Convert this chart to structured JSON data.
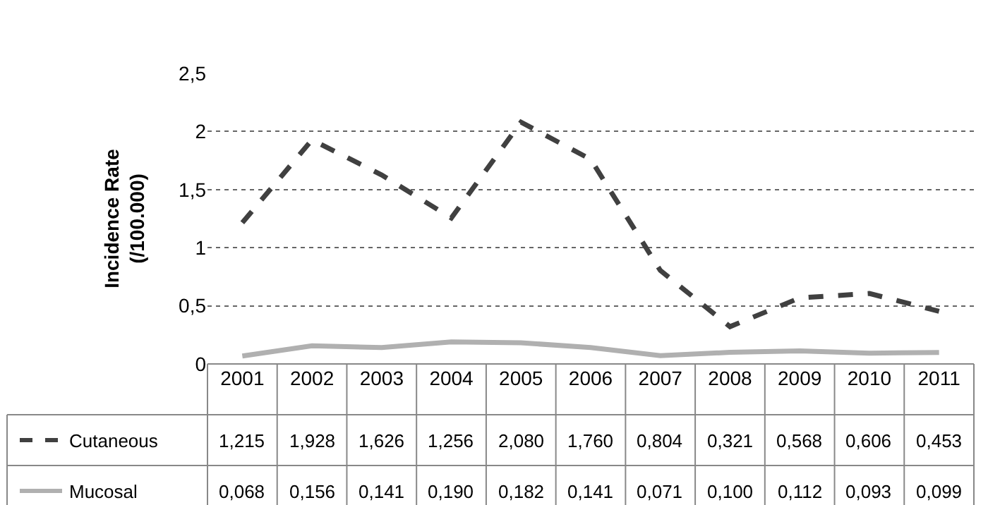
{
  "chart_data": {
    "type": "line",
    "ylabel": "Incidence Rate\n(/100.000)",
    "categories": [
      "2001",
      "2002",
      "2003",
      "2004",
      "2005",
      "2006",
      "2007",
      "2008",
      "2009",
      "2010",
      "2011"
    ],
    "series": [
      {
        "name": "Cutaneous",
        "color": "#404040",
        "line_style": "dashed",
        "values": [
          1.215,
          1.928,
          1.626,
          1.256,
          2.08,
          1.76,
          0.804,
          0.321,
          0.568,
          0.606,
          0.453
        ],
        "value_labels": [
          "1,215",
          "1,928",
          "1,626",
          "1,256",
          "2,080",
          "1,760",
          "0,804",
          "0,321",
          "0,568",
          "0,606",
          "0,453"
        ]
      },
      {
        "name": "Mucosal",
        "color": "#b0b0b0",
        "line_style": "solid",
        "values": [
          0.068,
          0.156,
          0.141,
          0.19,
          0.182,
          0.141,
          0.071,
          0.1,
          0.112,
          0.093,
          0.099
        ],
        "value_labels": [
          "0,068",
          "0,156",
          "0,141",
          "0,190",
          "0,182",
          "0,141",
          "0,071",
          "0,100",
          "0,112",
          "0,093",
          "0,099"
        ]
      }
    ],
    "ylim": [
      0,
      2.5
    ],
    "yticks": [
      0,
      {
        "value": 0.5,
        "label": "0,5"
      },
      1,
      {
        "value": 1.5,
        "label": "1,5"
      },
      2,
      {
        "value": 2.5,
        "label": "2,5"
      }
    ],
    "grid": "y",
    "legend": "bottom",
    "marker": "none"
  }
}
